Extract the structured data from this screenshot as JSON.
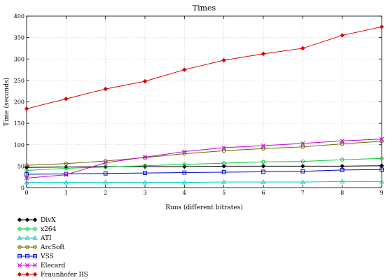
{
  "chart_data": {
    "type": "line",
    "title": "Times",
    "xlabel": "Runs (different bitrates)",
    "ylabel": "Time (seconds)",
    "xlim": [
      0,
      9
    ],
    "ylim": [
      0,
      400
    ],
    "xticks": [
      0,
      1,
      2,
      3,
      4,
      5,
      6,
      7,
      8,
      9
    ],
    "yticks": [
      0,
      50,
      100,
      150,
      200,
      250,
      300,
      350,
      400
    ],
    "x": [
      0,
      1,
      2,
      3,
      4,
      5,
      6,
      7,
      8,
      9
    ],
    "grid": true,
    "legend_position": "bottom-left",
    "series": [
      {
        "name": "DivX",
        "color": "#000000",
        "marker": "diamond",
        "values": [
          47,
          48,
          49,
          49,
          49,
          50,
          50,
          50,
          50,
          51
        ]
      },
      {
        "name": "x264",
        "color": "#00cc33",
        "marker": "circle",
        "values": [
          40,
          45,
          48,
          51,
          54,
          57,
          60,
          61,
          65,
          68
        ]
      },
      {
        "name": "ATI",
        "color": "#00cccc",
        "marker": "triangle",
        "values": [
          12,
          12,
          12,
          12,
          12,
          13,
          13,
          13,
          14,
          14
        ]
      },
      {
        "name": "ArcSoft",
        "color": "#666600",
        "marker": "circle",
        "values": [
          52,
          56,
          62,
          70,
          79,
          86,
          91,
          95,
          102,
          108
        ]
      },
      {
        "name": "VSS",
        "color": "#0000cc",
        "marker": "square",
        "values": [
          31,
          32,
          33,
          34,
          35,
          36,
          37,
          38,
          41,
          42
        ]
      },
      {
        "name": "Elecard",
        "color": "#cc00cc",
        "marker": "x",
        "values": [
          22,
          30,
          58,
          71,
          84,
          93,
          98,
          103,
          109,
          113
        ]
      },
      {
        "name": "Fraunhofer IIS",
        "color": "#dd0000",
        "marker": "diamond",
        "values": [
          184,
          207,
          230,
          248,
          275,
          297,
          312,
          325,
          355,
          375
        ]
      }
    ]
  }
}
